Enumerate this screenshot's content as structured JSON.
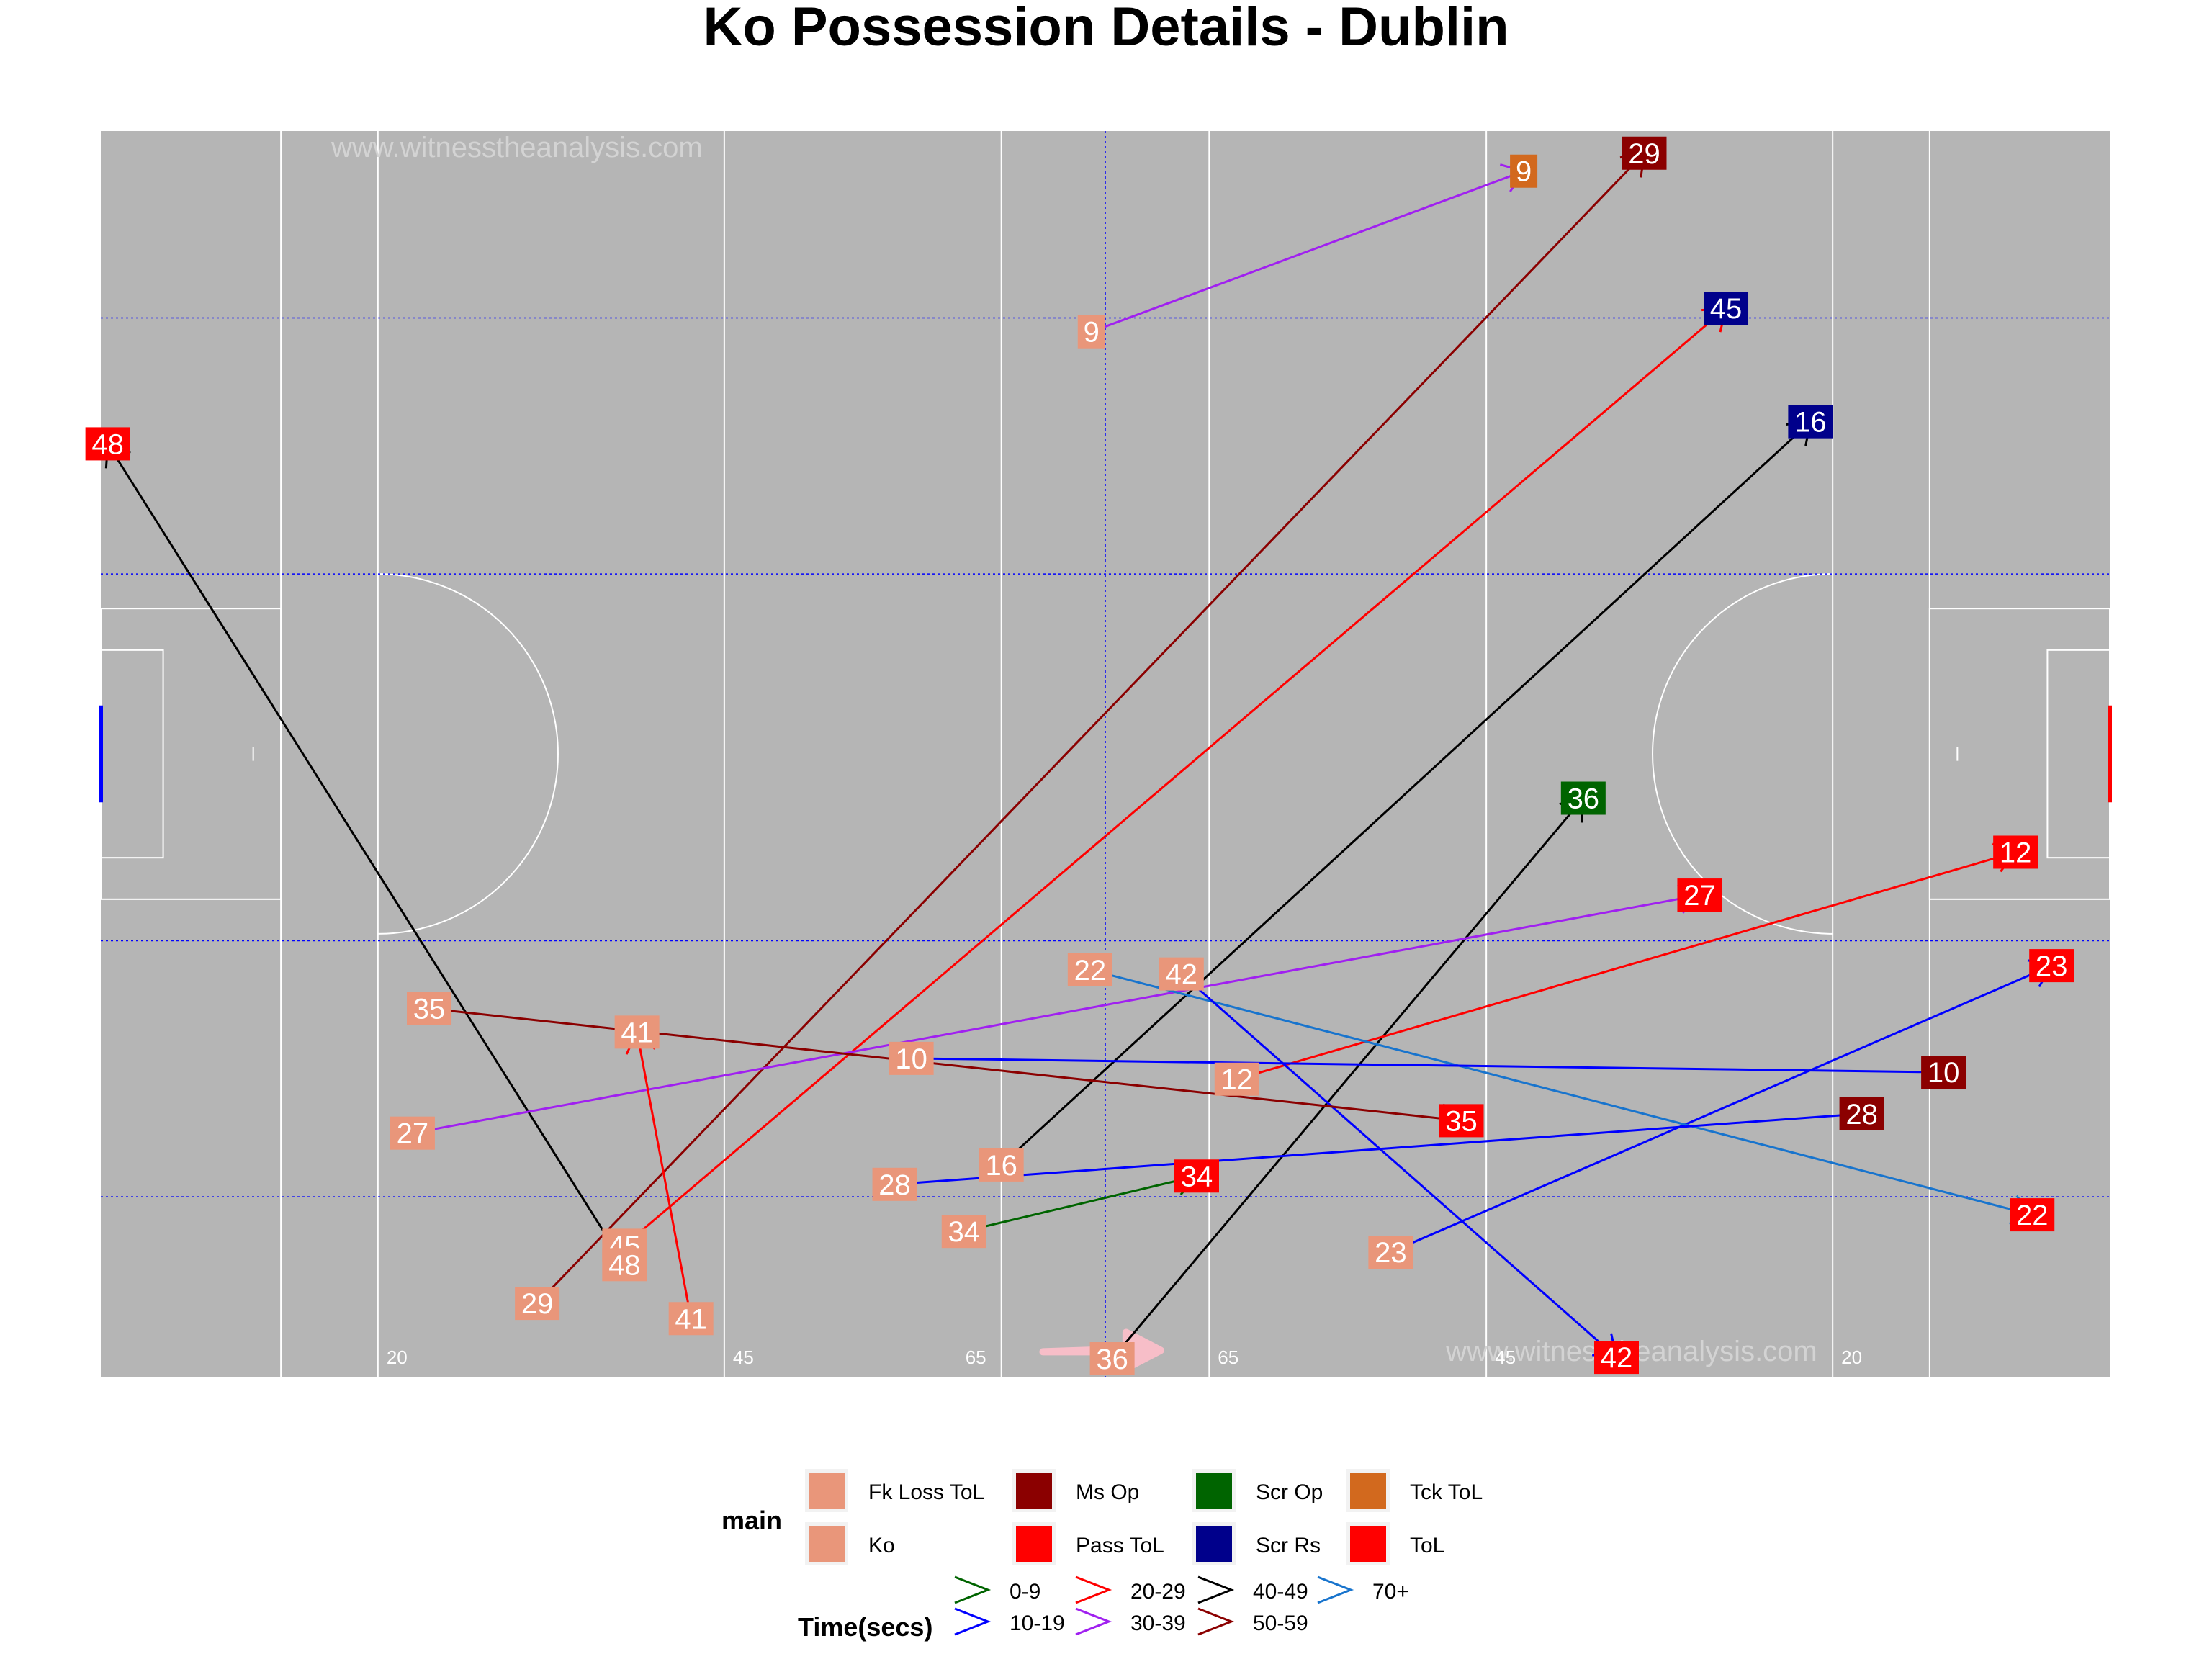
{
  "title": "Ko Possession Details - Dublin",
  "watermark": "www.witnesstheanalysis.com",
  "pitch": {
    "background": "#b5b5b5",
    "line_color": "#ffffff",
    "grid_color": "#0000ff",
    "left_goal_color": "#0000ff",
    "right_goal_color": "#ff0000",
    "distance_labels": [
      "20",
      "45",
      "65",
      "65",
      "45",
      "20"
    ]
  },
  "chart_data": {
    "type": "scatter",
    "title": "Ko Possession Details - Dublin",
    "xlim": [
      0,
      145
    ],
    "ylim": [
      0,
      90
    ],
    "possessions": [
      {
        "label": "9",
        "start": [
          71.5,
          75.5
        ],
        "end": [
          102.7,
          87.1
        ],
        "time": "30-39",
        "outcome": "Tck ToL"
      },
      {
        "label": "29",
        "start": [
          31.5,
          5.3
        ],
        "end": [
          111.4,
          88.4
        ],
        "time": "50-59",
        "outcome": "Ms Op"
      },
      {
        "label": "45",
        "start": [
          37.8,
          9.5
        ],
        "end": [
          117.3,
          77.2
        ],
        "time": "20-29",
        "outcome": "Scr Rs"
      },
      {
        "label": "48",
        "start": [
          37.8,
          8.1
        ],
        "end": [
          0.5,
          67.4
        ],
        "time": "40-49",
        "outcome": "ToL"
      },
      {
        "label": "16",
        "start": [
          65.0,
          15.3
        ],
        "end": [
          123.4,
          69.0
        ],
        "time": "40-49",
        "outcome": "Scr Rs"
      },
      {
        "label": "36",
        "start": [
          73.0,
          1.3
        ],
        "end": [
          107.0,
          41.8
        ],
        "time": "40-49",
        "outcome": "Scr Op"
      },
      {
        "label": "12",
        "start": [
          82.0,
          21.5
        ],
        "end": [
          138.2,
          37.9
        ],
        "time": "20-29",
        "outcome": "Pass ToL"
      },
      {
        "label": "27",
        "start": [
          22.5,
          17.6
        ],
        "end": [
          115.4,
          34.8
        ],
        "time": "30-39",
        "outcome": "ToL"
      },
      {
        "label": "23",
        "start": [
          93.1,
          9.0
        ],
        "end": [
          140.8,
          29.7
        ],
        "time": "10-19",
        "outcome": "ToL"
      },
      {
        "label": "22",
        "start": [
          71.4,
          29.4
        ],
        "end": [
          139.4,
          11.7
        ],
        "time": "70+",
        "outcome": "ToL"
      },
      {
        "label": "42",
        "start": [
          78.0,
          29.1
        ],
        "end": [
          109.4,
          1.4
        ],
        "time": "10-19",
        "outcome": "ToL"
      },
      {
        "label": "10",
        "start": [
          58.5,
          23.0
        ],
        "end": [
          133.0,
          22.0
        ],
        "time": "10-19",
        "outcome": "Ms Op"
      },
      {
        "label": "28",
        "start": [
          57.3,
          13.9
        ],
        "end": [
          127.1,
          19.0
        ],
        "time": "10-19",
        "outcome": "Ms Op"
      },
      {
        "label": "35",
        "start": [
          23.7,
          26.6
        ],
        "end": [
          98.2,
          18.5
        ],
        "time": "50-59",
        "outcome": "Pass ToL"
      },
      {
        "label": "34",
        "start": [
          62.3,
          10.5
        ],
        "end": [
          79.1,
          14.5
        ],
        "time": "0-9",
        "outcome": "ToL"
      },
      {
        "label": "41",
        "start": [
          42.6,
          4.2
        ],
        "end": [
          38.7,
          24.9
        ],
        "time": "20-29",
        "outcome": "Fk Loss ToL"
      }
    ],
    "legend_main": {
      "title": "main",
      "items": [
        {
          "name": "Fk Loss ToL",
          "color": "#e9967a"
        },
        {
          "name": "Ko",
          "color": "#e9967a"
        },
        {
          "name": "Ms Op",
          "color": "#8b0000"
        },
        {
          "name": "Pass ToL",
          "color": "#ff0000"
        },
        {
          "name": "Scr Op",
          "color": "#006400"
        },
        {
          "name": "Scr Rs",
          "color": "#00008b"
        },
        {
          "name": "Tck ToL",
          "color": "#d2691e"
        },
        {
          "name": "ToL",
          "color": "#ff0000"
        }
      ]
    },
    "legend_time": {
      "title": "Time(secs)",
      "items": [
        {
          "name": "0-9",
          "color": "#006400"
        },
        {
          "name": "10-19",
          "color": "#0000ff"
        },
        {
          "name": "20-29",
          "color": "#ff0000"
        },
        {
          "name": "30-39",
          "color": "#a020f0"
        },
        {
          "name": "40-49",
          "color": "#000000"
        },
        {
          "name": "50-59",
          "color": "#8b0000"
        },
        {
          "name": "70+",
          "color": "#1874cd"
        }
      ]
    },
    "start_label_color": "#e9967a"
  }
}
